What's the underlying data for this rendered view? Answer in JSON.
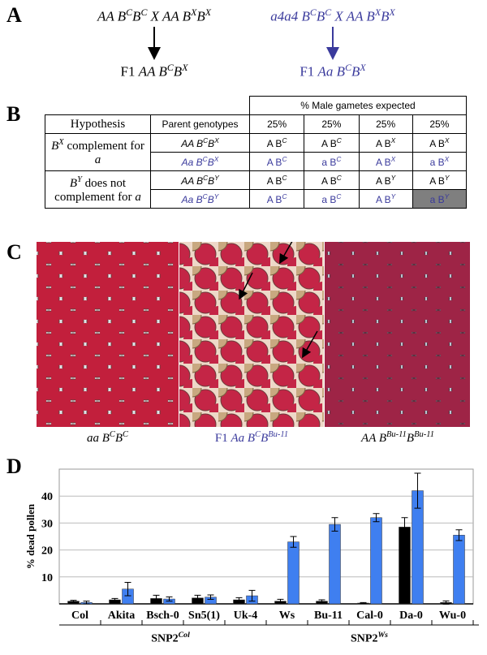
{
  "panels": {
    "A": {
      "label": "A",
      "left_cross": [
        "AA B",
        {
          "sup": "C"
        },
        "B",
        {
          "sup": "C"
        },
        " X AA B",
        {
          "sup": "X"
        },
        "B",
        {
          "sup": "X"
        }
      ],
      "left_f1": [
        {
          "r": "F1 "
        },
        "AA B",
        {
          "sup": "C"
        },
        "B",
        {
          "sup": "X"
        }
      ],
      "right_cross": [
        "a4a4 B",
        {
          "sup": "C"
        },
        "B",
        {
          "sup": "C"
        },
        " X AA B",
        {
          "sup": "X"
        },
        "B",
        {
          "sup": "X"
        }
      ],
      "right_f1": [
        {
          "r": "F1 "
        },
        "Aa B",
        {
          "sup": "C"
        },
        "B",
        {
          "sup": "X"
        }
      ]
    },
    "B": {
      "label": "B",
      "header_span": "% Male gametes expected",
      "columns": [
        "Hypothesis",
        "Parent genotypes",
        "25%",
        "25%",
        "25%",
        "25%"
      ],
      "hypotheses": [
        [
          {
            "i": "B"
          },
          {
            "sup": "X"
          },
          {
            "r": " complement for "
          },
          {
            "i": "a"
          }
        ],
        [
          {
            "i": "B"
          },
          {
            "sup": "Y"
          },
          {
            "r": " does not complement for "
          },
          {
            "i": "a"
          }
        ]
      ],
      "rows": [
        [
          [
            "AA B",
            {
              "sup": "C"
            },
            "B",
            {
              "sup": "X"
            }
          ],
          [
            "A B",
            {
              "sup": "C"
            }
          ],
          [
            "A B",
            {
              "sup": "C"
            }
          ],
          [
            "A B",
            {
              "sup": "X"
            }
          ],
          [
            "A B",
            {
              "sup": "X"
            }
          ]
        ],
        [
          [
            "Aa B",
            {
              "sup": "C"
            },
            "B",
            {
              "sup": "X"
            }
          ],
          [
            "A B",
            {
              "sup": "C"
            }
          ],
          [
            "a B",
            {
              "sup": "C"
            }
          ],
          [
            "A B",
            {
              "sup": "X"
            }
          ],
          [
            "a B",
            {
              "sup": "X"
            }
          ]
        ],
        [
          [
            "AA B",
            {
              "sup": "C"
            },
            "B",
            {
              "sup": "Y"
            }
          ],
          [
            "A B",
            {
              "sup": "C"
            }
          ],
          [
            "A B",
            {
              "sup": "C"
            }
          ],
          [
            "A B",
            {
              "sup": "Y"
            }
          ],
          [
            "A B",
            {
              "sup": "Y"
            }
          ]
        ],
        [
          [
            "Aa B",
            {
              "sup": "C"
            },
            "B",
            {
              "sup": "Y"
            }
          ],
          [
            "A B",
            {
              "sup": "C"
            }
          ],
          [
            "a B",
            {
              "sup": "C"
            }
          ],
          [
            "A B",
            {
              "sup": "Y"
            }
          ],
          [
            "a B",
            {
              "sup": "Y"
            }
          ]
        ]
      ]
    },
    "C": {
      "label": "C",
      "captions": [
        [
          "aa B",
          {
            "sup": "C"
          },
          "B",
          {
            "sup": "C"
          }
        ],
        [
          {
            "r": "F1 "
          },
          "Aa B",
          {
            "sup": "C"
          },
          "B",
          {
            "sup": "Bu-11"
          }
        ],
        [
          "AA B",
          {
            "sup": "Bu-11"
          },
          "B",
          {
            "sup": "Bu-11"
          }
        ]
      ]
    },
    "D": {
      "label": "D",
      "group_labels": [
        [
          "SNP2",
          {
            "sup": "Col"
          }
        ],
        [
          "SNP2",
          {
            "sup": "Ws"
          }
        ]
      ]
    }
  },
  "chart_data": {
    "type": "bar",
    "ylabel": "% dead pollen",
    "categories": [
      "Col",
      "Akita",
      "Bsch-0",
      "Sn5(1)",
      "Uk-4",
      "Ws",
      "Bu-11",
      "Cal-0",
      "Da-0",
      "Wu-0"
    ],
    "series": [
      {
        "color": "#000000",
        "values": [
          1,
          1.5,
          2,
          2.2,
          1.5,
          1,
          1,
          0.3,
          28.5,
          0.5
        ],
        "errors": [
          0.3,
          0.5,
          1.2,
          1,
          0.8,
          0.7,
          0.5,
          0.2,
          3.5,
          0.6
        ]
      },
      {
        "color": "#3f7ff0",
        "values": [
          0.5,
          5.5,
          1.8,
          2.5,
          3,
          23,
          29.5,
          32,
          42,
          25.5
        ],
        "errors": [
          0.5,
          2.5,
          0.8,
          0.8,
          2,
          2,
          2.5,
          1.5,
          6.5,
          2
        ]
      }
    ],
    "ylim": [
      0,
      50
    ],
    "yticks": [
      10,
      20,
      30,
      40
    ],
    "grid": true
  }
}
